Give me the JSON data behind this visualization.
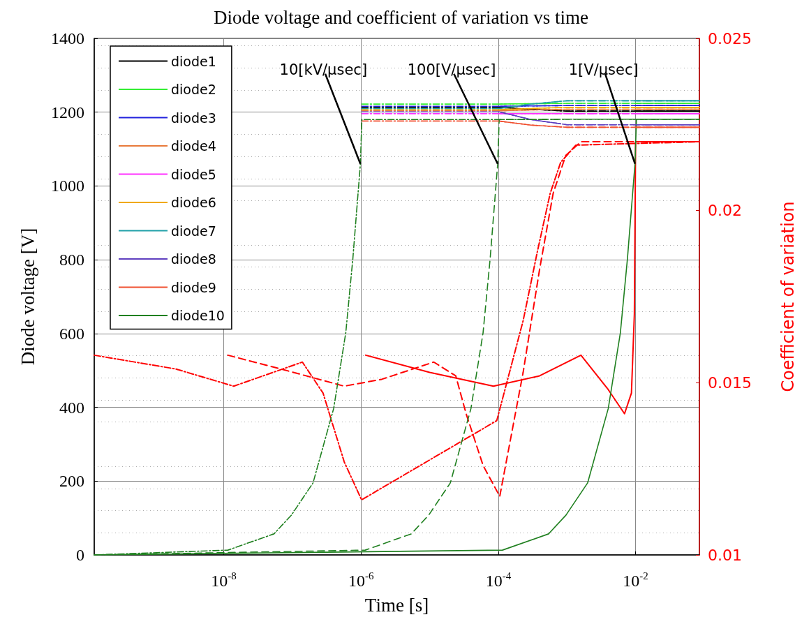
{
  "chart_data": {
    "type": "line",
    "title": "Diode voltage and coefficient of variation vs time",
    "xlabel": "Time [s]",
    "ylabel": "Diode voltage [V]",
    "y2label": "Coefficient of variation",
    "log": "x",
    "grid": true,
    "legend": "top left",
    "xlim": [
      1.3e-10,
      0.085
    ],
    "xticks": [
      {
        "value": 1e-08,
        "label": "10$^{-8}$"
      },
      {
        "value": 1e-06,
        "label": "10$^{-6}$"
      },
      {
        "value": 0.0001,
        "label": "10$^{-4}$"
      },
      {
        "value": 0.01,
        "label": "10$^{-2}$"
      }
    ],
    "ylim": [
      0,
      1400
    ],
    "yticks": [
      0,
      200,
      400,
      600,
      800,
      1000,
      1200,
      1400
    ],
    "y2lim": [
      0.01,
      0.025
    ],
    "y2ticks": [
      0.01,
      0.015,
      0.02,
      0.025
    ],
    "annotations": [
      {
        "text": "10[kV/μsec]",
        "x": 9.8e-07,
        "y": 1060
      },
      {
        "text": "100[V/μsec]",
        "x": 9.8e-05,
        "y": 1060
      },
      {
        "text": "1[V/μsec]",
        "x": 0.0098,
        "y": 1060
      }
    ],
    "series": [
      {
        "name": "diode1",
        "color": "#000000",
        "line_style": "solid",
        "x": [
          0.0103,
          0.085
        ],
        "values": [
          1203,
          1203
        ]
      },
      {
        "name": "diode2",
        "color": "#33ee33",
        "line_style": "solid",
        "x": [
          0.0103,
          0.085
        ],
        "values": [
          1224,
          1224
        ]
      },
      {
        "name": "diode3",
        "color": "#2222dd",
        "line_style": "solid",
        "x": [
          0.0103,
          0.085
        ],
        "values": [
          1218,
          1218
        ]
      },
      {
        "name": "diode4",
        "color": "#e87a3a",
        "line_style": "solid",
        "x": [
          0.0103,
          0.085
        ],
        "values": [
          1208,
          1208
        ]
      },
      {
        "name": "diode5",
        "color": "#ff33ff",
        "line_style": "solid",
        "x": [
          0.0103,
          0.085
        ],
        "values": [
          1196,
          1196
        ]
      },
      {
        "name": "diode6",
        "color": "#f0a800",
        "line_style": "solid",
        "x": [
          0.0103,
          0.085
        ],
        "values": [
          1213,
          1213
        ]
      },
      {
        "name": "diode7",
        "color": "#20a0a8",
        "line_style": "solid",
        "x": [
          0.0103,
          0.085
        ],
        "values": [
          1231,
          1231
        ]
      },
      {
        "name": "diode8",
        "color": "#6040c0",
        "line_style": "solid",
        "x": [
          0.0103,
          0.085
        ],
        "values": [
          1166,
          1166
        ]
      },
      {
        "name": "diode9",
        "color": "#f05030",
        "line_style": "solid",
        "x": [
          0.0103,
          0.085
        ],
        "values": [
          1159,
          1159
        ]
      },
      {
        "name": "diode10",
        "color": "#208020",
        "line_style": "solid",
        "x": [
          1.3e-10,
          0.000115,
          0.00054,
          0.00097,
          0.002,
          0.004,
          0.006,
          0.0076,
          0.0098,
          0.0103,
          0.085
        ],
        "values": [
          0,
          13,
          57,
          108,
          195,
          397,
          602,
          802,
          1060,
          1181,
          1181
        ]
      },
      {
        "color": "#000000",
        "line_style": "dashed",
        "x": [
          0.000103,
          0.0003,
          0.001,
          0.085
        ],
        "values": [
          1213,
          1208,
          1203,
          1203
        ]
      },
      {
        "color": "#33ee33",
        "line_style": "dashed",
        "x": [
          0.000103,
          0.0003,
          0.001,
          0.085
        ],
        "values": [
          1222,
          1223,
          1224,
          1224
        ]
      },
      {
        "color": "#2222dd",
        "line_style": "dashed",
        "x": [
          0.000103,
          0.0003,
          0.001,
          0.085
        ],
        "values": [
          1216,
          1217,
          1218,
          1218
        ]
      },
      {
        "color": "#e87a3a",
        "line_style": "dashed",
        "x": [
          0.000103,
          0.0003,
          0.001,
          0.085
        ],
        "values": [
          1204,
          1206,
          1208,
          1208
        ]
      },
      {
        "color": "#ff33ff",
        "line_style": "dashed",
        "x": [
          0.000103,
          0.0003,
          0.001,
          0.085
        ],
        "values": [
          1196,
          1196,
          1196,
          1196
        ]
      },
      {
        "color": "#f0a800",
        "line_style": "dashed",
        "x": [
          0.000103,
          0.0003,
          0.001,
          0.085
        ],
        "values": [
          1207,
          1210,
          1213,
          1213
        ]
      },
      {
        "color": "#20a0a8",
        "line_style": "dashed",
        "x": [
          0.000103,
          0.0003,
          0.001,
          0.085
        ],
        "values": [
          1210,
          1222,
          1231,
          1231
        ]
      },
      {
        "color": "#6040c0",
        "line_style": "dashed",
        "x": [
          0.000103,
          0.0003,
          0.001,
          0.085
        ],
        "values": [
          1201,
          1180,
          1166,
          1166
        ]
      },
      {
        "color": "#f05030",
        "line_style": "dashed",
        "x": [
          0.000103,
          0.0003,
          0.001,
          0.085
        ],
        "values": [
          1176,
          1165,
          1159,
          1159
        ]
      },
      {
        "color": "#208020",
        "line_style": "dashed",
        "x": [
          1.3e-10,
          1.15e-06,
          5.4e-06,
          9.7e-06,
          2e-05,
          4e-05,
          6e-05,
          7.6e-05,
          9.8e-05,
          0.000103,
          0.0003,
          0.001,
          0.085
        ],
        "values": [
          0,
          13,
          57,
          108,
          195,
          397,
          602,
          802,
          1060,
          1180,
          1180,
          1181,
          1181
        ]
      },
      {
        "color": "#000000",
        "line_style": "dashdot",
        "x": [
          1.03e-06,
          0.0001,
          0.0003,
          0.001,
          0.085
        ],
        "values": [
          1213,
          1213,
          1208,
          1203,
          1203
        ]
      },
      {
        "color": "#33ee33",
        "line_style": "dashdot",
        "x": [
          1.03e-06,
          0.0001,
          0.0003,
          0.001,
          0.085
        ],
        "values": [
          1222,
          1222,
          1223,
          1224,
          1224
        ]
      },
      {
        "color": "#2222dd",
        "line_style": "dashdot",
        "x": [
          1.03e-06,
          0.0001,
          0.0003,
          0.001,
          0.085
        ],
        "values": [
          1216,
          1216,
          1217,
          1218,
          1218
        ]
      },
      {
        "color": "#e87a3a",
        "line_style": "dashdot",
        "x": [
          1.03e-06,
          0.0001,
          0.0003,
          0.001,
          0.085
        ],
        "values": [
          1204,
          1204,
          1206,
          1208,
          1208
        ]
      },
      {
        "color": "#ff33ff",
        "line_style": "dashdot",
        "x": [
          1.03e-06,
          0.0001,
          0.0003,
          0.001,
          0.085
        ],
        "values": [
          1196,
          1196,
          1196,
          1196,
          1196
        ]
      },
      {
        "color": "#f0a800",
        "line_style": "dashdot",
        "x": [
          1.03e-06,
          0.0001,
          0.0003,
          0.001,
          0.085
        ],
        "values": [
          1207,
          1207,
          1210,
          1213,
          1213
        ]
      },
      {
        "color": "#20a0a8",
        "line_style": "dashdot",
        "x": [
          1.03e-06,
          0.0001,
          0.0003,
          0.001,
          0.085
        ],
        "values": [
          1210,
          1210,
          1222,
          1231,
          1231
        ]
      },
      {
        "color": "#6040c0",
        "line_style": "dashdot",
        "x": [
          1.03e-06,
          0.0001,
          0.0003,
          0.001,
          0.085
        ],
        "values": [
          1201,
          1201,
          1180,
          1166,
          1166
        ]
      },
      {
        "color": "#f05030",
        "line_style": "dashdot",
        "x": [
          1.03e-06,
          0.0001,
          0.0003,
          0.001,
          0.085
        ],
        "values": [
          1176,
          1176,
          1165,
          1159,
          1159
        ]
      },
      {
        "color": "#208020",
        "line_style": "dashdot",
        "x": [
          1.3e-10,
          1.15e-08,
          5.4e-08,
          9.7e-08,
          2e-07,
          4e-07,
          6e-07,
          7.6e-07,
          9.8e-07,
          1.03e-06,
          0.0001,
          0.0003,
          0.001,
          0.085
        ],
        "values": [
          0,
          13,
          57,
          108,
          195,
          397,
          602,
          802,
          1060,
          1180,
          1180,
          1180,
          1181,
          1181
        ]
      },
      {
        "color": "#ff0000",
        "axis": "y2",
        "line_style": "solid",
        "x": [
          1.17e-06,
          1e-05,
          8.5e-05,
          0.0004,
          0.0016,
          0.004,
          0.0069,
          0.0087,
          0.0096,
          0.01,
          0.085
        ],
        "values": [
          0.0158,
          0.0153,
          0.0149,
          0.0152,
          0.0158,
          0.0148,
          0.0141,
          0.0147,
          0.017,
          0.022,
          0.022
        ]
      },
      {
        "color": "#ff0000",
        "axis": "y2",
        "line_style": "dashed",
        "x": [
          1.15e-08,
          6.8e-08,
          5.7e-07,
          2e-06,
          1.15e-05,
          2.4e-05,
          3.4e-05,
          6e-05,
          0.000105,
          0.00023,
          0.0004,
          0.00063,
          0.00096,
          0.0016,
          0.085
        ],
        "values": [
          0.0158,
          0.0154,
          0.0149,
          0.0151,
          0.0156,
          0.0152,
          0.0141,
          0.0126,
          0.0117,
          0.0153,
          0.0183,
          0.0205,
          0.0216,
          0.022,
          0.022
        ]
      },
      {
        "color": "#ff0000",
        "axis": "y2",
        "line_style": "dashdot",
        "x": [
          1.3e-10,
          2e-09,
          1.4e-08,
          1.4e-07,
          2.8e-07,
          5.7e-07,
          1.02e-06,
          9.5e-05,
          0.00023,
          0.00037,
          0.00057,
          0.00081,
          0.00135,
          0.085
        ],
        "values": [
          0.0158,
          0.0154,
          0.0149,
          0.0156,
          0.0147,
          0.0127,
          0.0116,
          0.0139,
          0.0168,
          0.0188,
          0.0205,
          0.0214,
          0.0219,
          0.022
        ]
      }
    ]
  }
}
